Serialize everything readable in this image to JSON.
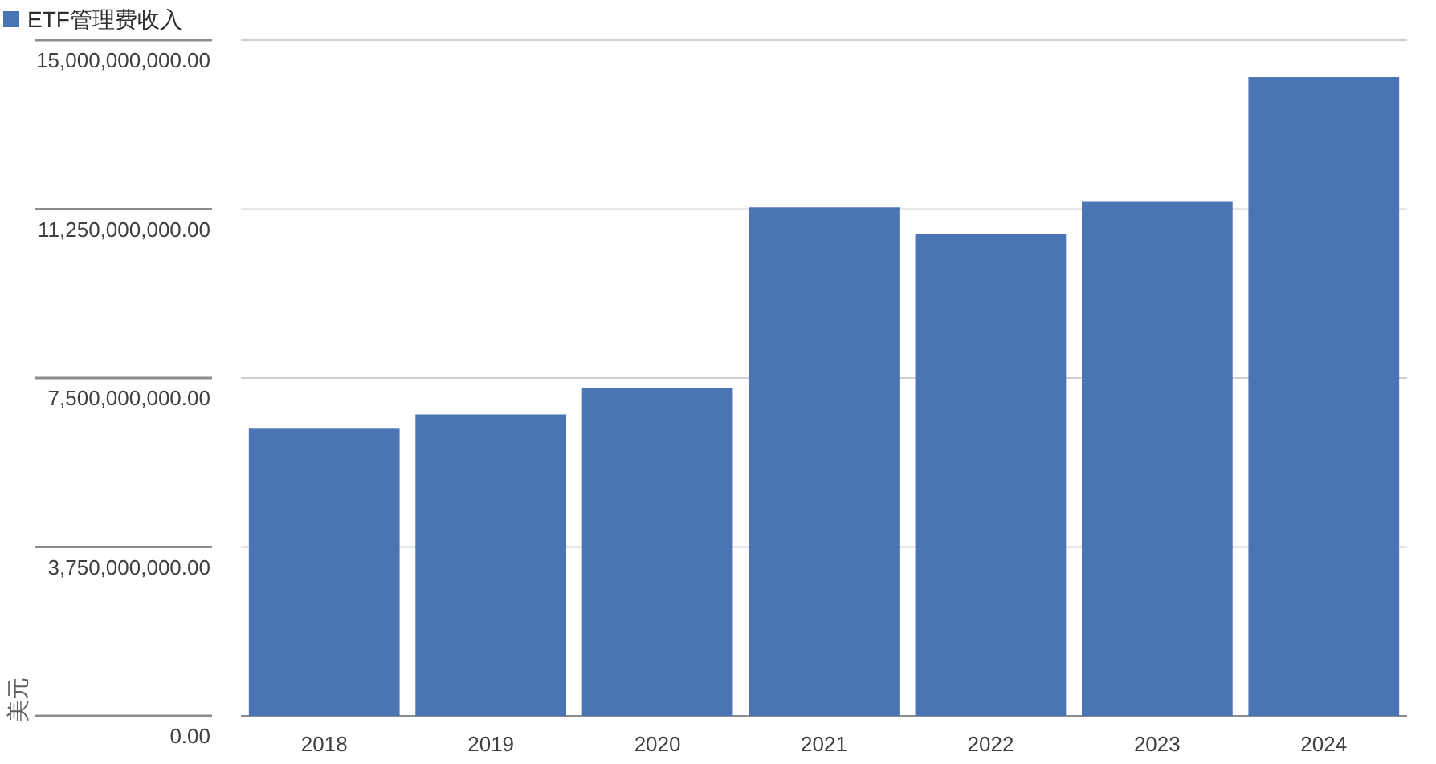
{
  "chart_data": {
    "type": "bar",
    "ylabel": "美元",
    "legend": "top left",
    "grid": "y",
    "categories": [
      "2018",
      "2019",
      "2020",
      "2021",
      "2022",
      "2023",
      "2024"
    ],
    "series": [
      {
        "name": "ETF管理费收入",
        "color": "#4a74b4",
        "values": [
          6390000000,
          6690000000,
          7270000000,
          11290000000,
          10700000000,
          11410000000,
          14180000000
        ]
      }
    ],
    "ylim": [
      0,
      15000000000
    ],
    "yticks": [
      {
        "value": 0,
        "label": "0.00"
      },
      {
        "value": 3750000000,
        "label": "3,750,000,000.00"
      },
      {
        "value": 7500000000,
        "label": "7,500,000,000.00"
      },
      {
        "value": 11250000000,
        "label": "11,250,000,000.00"
      },
      {
        "value": 15000000000,
        "label": "15,000,000,000.00"
      }
    ]
  }
}
